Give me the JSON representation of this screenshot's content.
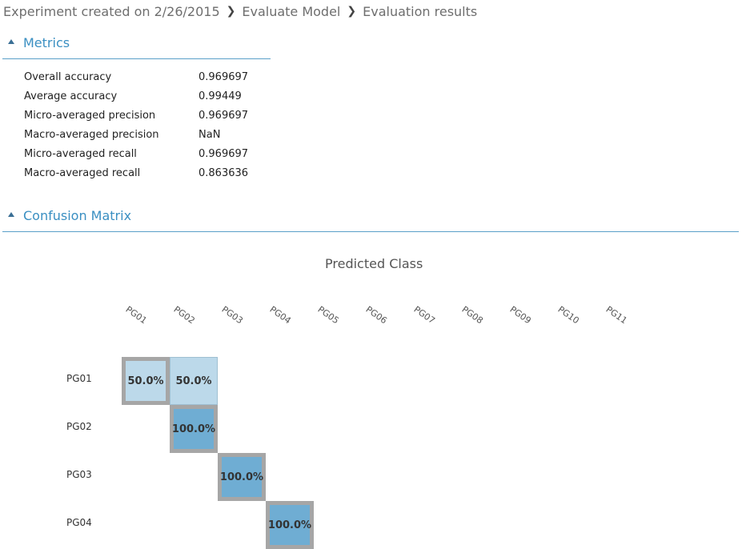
{
  "breadcrumb": {
    "items": [
      "Experiment created on 2/26/2015",
      "Evaluate Model",
      "Evaluation results"
    ]
  },
  "metrics": {
    "title": "Metrics",
    "rows": [
      {
        "label": "Overall accuracy",
        "value": "0.969697"
      },
      {
        "label": "Average accuracy",
        "value": "0.99449"
      },
      {
        "label": "Micro-averaged precision",
        "value": "0.969697"
      },
      {
        "label": "Macro-averaged precision",
        "value": "NaN"
      },
      {
        "label": "Micro-averaged recall",
        "value": "0.969697"
      },
      {
        "label": "Macro-averaged recall",
        "value": "0.863636"
      }
    ]
  },
  "confusion": {
    "title": "Confusion Matrix",
    "predicted_title": "Predicted Class",
    "columns": [
      "PG01",
      "PG02",
      "PG03",
      "PG04",
      "PG05",
      "PG06",
      "PG07",
      "PG08",
      "PG09",
      "PG10",
      "PG11"
    ],
    "rows": [
      "PG01",
      "PG02",
      "PG03",
      "PG04"
    ],
    "cells": [
      {
        "row": 0,
        "col": 0,
        "text": "50.0%",
        "value": 0.5
      },
      {
        "row": 0,
        "col": 1,
        "text": "50.0%",
        "value": 0.5
      },
      {
        "row": 1,
        "col": 1,
        "text": "100.0%",
        "value": 1.0
      },
      {
        "row": 2,
        "col": 2,
        "text": "100.0%",
        "value": 1.0
      },
      {
        "row": 3,
        "col": 3,
        "text": "100.0%",
        "value": 1.0
      }
    ],
    "colors": {
      "light": "#bcd9ea",
      "dark": "#6fadd3",
      "diagonal_border": "#a6a6a6"
    }
  }
}
